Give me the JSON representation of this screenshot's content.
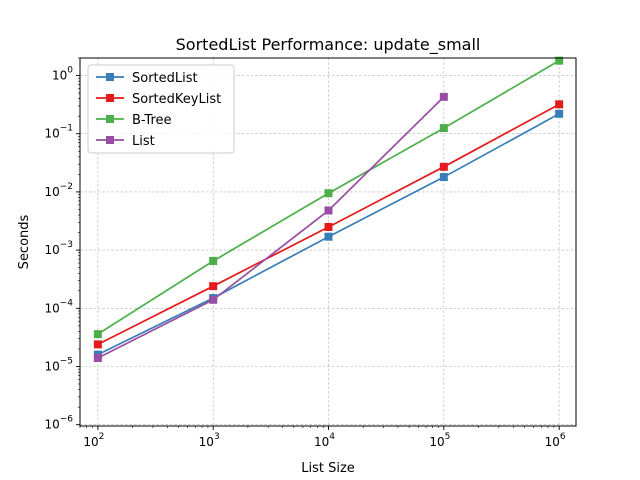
{
  "chart_data": {
    "type": "line",
    "title": "SortedList Performance: update_small",
    "xlabel": "List Size",
    "ylabel": "Seconds",
    "xscale": "log",
    "yscale": "log",
    "xlim": [
      70,
      1400000
    ],
    "ylim": [
      9.5e-07,
      2
    ],
    "grid": true,
    "legend_position": "top-left",
    "x_ticks": [
      {
        "value": 100,
        "base": "10",
        "exp": "2"
      },
      {
        "value": 1000,
        "base": "10",
        "exp": "3"
      },
      {
        "value": 10000,
        "base": "10",
        "exp": "4"
      },
      {
        "value": 100000,
        "base": "10",
        "exp": "5"
      },
      {
        "value": 1000000,
        "base": "10",
        "exp": "6"
      }
    ],
    "y_ticks": [
      {
        "value": 1e-06,
        "base": "10",
        "exp": "−6"
      },
      {
        "value": 1e-05,
        "base": "10",
        "exp": "−5"
      },
      {
        "value": 0.0001,
        "base": "10",
        "exp": "−4"
      },
      {
        "value": 0.001,
        "base": "10",
        "exp": "−3"
      },
      {
        "value": 0.01,
        "base": "10",
        "exp": "−2"
      },
      {
        "value": 0.1,
        "base": "10",
        "exp": "−1"
      },
      {
        "value": 1,
        "base": "10",
        "exp": "0"
      }
    ],
    "series": [
      {
        "name": "SortedList",
        "color": "#377eb8",
        "x": [
          100,
          1000,
          10000,
          100000,
          1000000
        ],
        "values": [
          1.6e-05,
          0.00015,
          0.0017,
          0.018,
          0.22
        ]
      },
      {
        "name": "SortedKeyList",
        "color": "#e41a1c",
        "x": [
          100,
          1000,
          10000,
          100000,
          1000000
        ],
        "values": [
          2.4e-05,
          0.00024,
          0.0025,
          0.027,
          0.32
        ]
      },
      {
        "name": "B-Tree",
        "color": "#4daf4a",
        "x": [
          100,
          1000,
          10000,
          100000,
          1000000
        ],
        "values": [
          3.6e-05,
          0.00065,
          0.0095,
          0.125,
          1.8
        ]
      },
      {
        "name": "List",
        "color": "#984ea3",
        "x": [
          100,
          1000,
          10000,
          100000
        ],
        "values": [
          1.4e-05,
          0.00014,
          0.0048,
          0.43
        ]
      }
    ]
  }
}
